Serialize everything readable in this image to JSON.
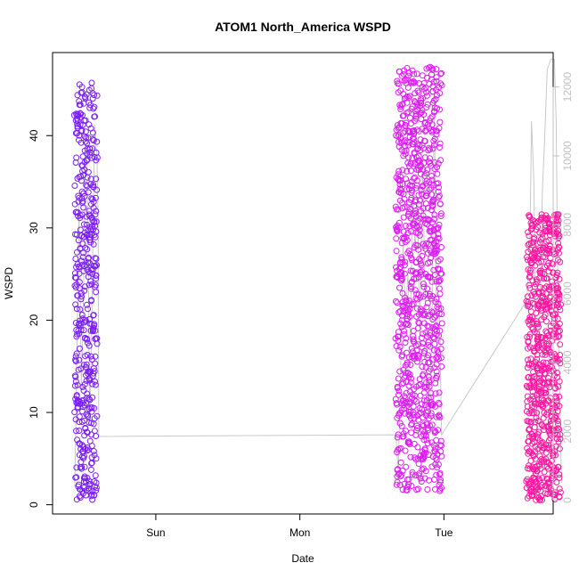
{
  "chart_data": {
    "type": "scatter",
    "title": "ATOM1 North_America WSPD",
    "xlabel": "Date",
    "ylabel": "WSPD",
    "x_ticks": [
      "Sun",
      "Mon",
      "Tue"
    ],
    "y_ticks": [
      "0",
      "10",
      "20",
      "30",
      "40"
    ],
    "y2_ticks": [
      "0",
      "2000",
      "4000",
      "6000",
      "8000",
      "10000",
      "12000"
    ],
    "ylim": [
      -1,
      49
    ],
    "y2lim": [
      -400,
      13000
    ],
    "xlim_hours": [
      -17.2,
      66.2
    ],
    "grid": false,
    "legend": "none",
    "colors": {
      "segment_1": "#7b1ef5",
      "segment_2": "#dc1cf0",
      "segment_3": "#fa16a0",
      "altitude_line": "#c8c8c8",
      "axis": "#000000",
      "right_axis": "#c0c0c0"
    },
    "series": [
      {
        "role": "wspd_scatter",
        "segments": [
          {
            "x_hours": [
              -13.5,
              -9.8
            ],
            "wspd_range": [
              0.5,
              45.8
            ],
            "color_key": "segment_1"
          },
          {
            "x_hours": [
              40.0,
              47.6
            ],
            "wspd_range": [
              1.5,
              47.6
            ],
            "color_key": "segment_2"
          },
          {
            "x_hours": [
              61.8,
              67.4
            ],
            "wspd_range": [
              0.5,
              31.5
            ],
            "color_key": "segment_3"
          }
        ]
      },
      {
        "role": "altitude_line",
        "axis": "right",
        "points": [
          [
            -13.5,
            400
          ],
          [
            -13.3,
            2400
          ],
          [
            -13.0,
            6000
          ],
          [
            -12.8,
            8600
          ],
          [
            -12.6,
            6400
          ],
          [
            -12.4,
            3200
          ],
          [
            -12.1,
            5400
          ],
          [
            -11.8,
            9400
          ],
          [
            -11.5,
            10500
          ],
          [
            -11.2,
            6200
          ],
          [
            -11.0,
            2200
          ],
          [
            -10.7,
            4800
          ],
          [
            -10.4,
            8400
          ],
          [
            -10.2,
            10900
          ],
          [
            -10.0,
            10400
          ],
          [
            -9.8,
            10000
          ],
          [
            -9.6,
            8000
          ],
          [
            -9.5,
            1850
          ],
          [
            40.0,
            1900
          ],
          [
            40.4,
            800
          ],
          [
            40.8,
            3800
          ],
          [
            41.2,
            7400
          ],
          [
            41.6,
            5200
          ],
          [
            42.0,
            6600
          ],
          [
            42.4,
            4600
          ],
          [
            42.8,
            9000
          ],
          [
            43.2,
            7200
          ],
          [
            43.6,
            8800
          ],
          [
            44.0,
            4600
          ],
          [
            44.4,
            9800
          ],
          [
            44.8,
            6800
          ],
          [
            45.2,
            3400
          ],
          [
            45.6,
            2600
          ],
          [
            46.0,
            4800
          ],
          [
            46.4,
            11800
          ],
          [
            46.8,
            4200
          ],
          [
            47.2,
            6000
          ],
          [
            47.6,
            1900
          ],
          [
            61.8,
            5800
          ],
          [
            62.3,
            7200
          ],
          [
            62.6,
            11000
          ],
          [
            63.0,
            9200
          ],
          [
            63.3,
            4000
          ],
          [
            63.6,
            1400
          ],
          [
            64.0,
            5600
          ],
          [
            64.4,
            9000
          ],
          [
            64.8,
            10600
          ],
          [
            65.2,
            12500
          ],
          [
            65.8,
            12800
          ],
          [
            66.4,
            12800
          ],
          [
            66.7,
            11000
          ],
          [
            67.0,
            5600
          ],
          [
            67.3,
            3000
          ],
          [
            67.6,
            500
          ]
        ]
      }
    ]
  }
}
